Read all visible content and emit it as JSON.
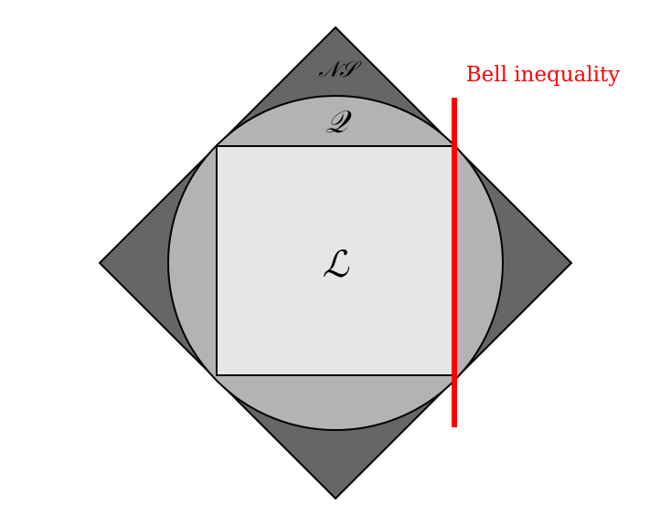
{
  "labels": {
    "nonsignaling": "𝒩𝒮",
    "quantum": "𝒬",
    "local": "ℒ",
    "bell": "Bell inequality"
  },
  "colors": {
    "nonsignaling_fill": "#666666",
    "quantum_fill": "#b3b3b3",
    "local_fill": "#e6e6e6",
    "outline": "#000000",
    "bell_line": "#ff0000"
  }
}
